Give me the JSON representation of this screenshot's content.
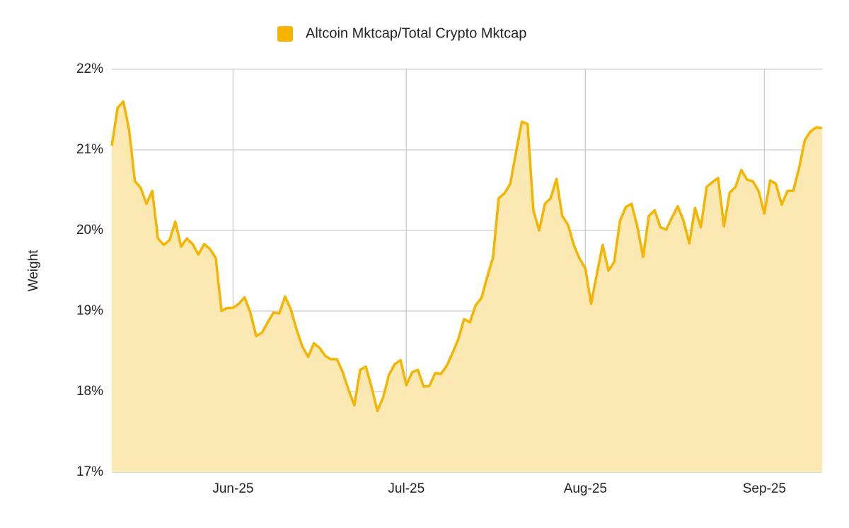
{
  "chart_data": {
    "type": "area",
    "y_label": "Weight",
    "categories": [
      null,
      null,
      null,
      null,
      null,
      null,
      null,
      null,
      null,
      null,
      null,
      null,
      null,
      null,
      null,
      null,
      null,
      null,
      null,
      null,
      null,
      "Jun-25",
      null,
      null,
      null,
      null,
      null,
      null,
      null,
      null,
      null,
      null,
      null,
      null,
      null,
      null,
      null,
      null,
      null,
      null,
      null,
      null,
      null,
      null,
      null,
      null,
      null,
      null,
      null,
      null,
      null,
      "Jul-25",
      null,
      null,
      null,
      null,
      null,
      null,
      null,
      null,
      null,
      null,
      null,
      null,
      null,
      null,
      null,
      null,
      null,
      null,
      null,
      null,
      null,
      null,
      null,
      null,
      null,
      null,
      null,
      null,
      null,
      null,
      "Aug-25",
      null,
      null,
      null,
      null,
      null,
      null,
      null,
      null,
      null,
      null,
      null,
      null,
      null,
      null,
      null,
      null,
      null,
      null,
      null,
      null,
      null,
      null,
      null,
      null,
      null,
      null,
      null,
      null,
      null,
      null,
      "Sep-25",
      null,
      null,
      null,
      null,
      null,
      null,
      null,
      null,
      null,
      null
    ],
    "series": [
      {
        "name": "Altcoin Mktcap/Total Crypto Mktcap",
        "color": "#f4b400",
        "fill": "#fce8b2",
        "values": [
          21.05,
          21.52,
          21.6,
          21.25,
          20.61,
          20.53,
          20.33,
          20.49,
          19.9,
          19.82,
          19.88,
          20.11,
          19.8,
          19.9,
          19.83,
          19.7,
          19.83,
          19.77,
          19.66,
          19.0,
          19.04,
          19.04,
          19.09,
          19.17,
          18.98,
          18.69,
          18.73,
          18.86,
          18.98,
          18.97,
          19.18,
          19.02,
          18.77,
          18.56,
          18.43,
          18.6,
          18.54,
          18.44,
          18.4,
          18.4,
          18.24,
          18.02,
          17.83,
          18.27,
          18.31,
          18.05,
          17.76,
          17.93,
          18.21,
          18.34,
          18.39,
          18.08,
          18.24,
          18.27,
          18.06,
          18.07,
          18.23,
          18.22,
          18.32,
          18.48,
          18.65,
          18.9,
          18.86,
          19.07,
          19.16,
          19.42,
          19.66,
          20.4,
          20.46,
          20.58,
          20.97,
          21.35,
          21.32,
          20.25,
          20.0,
          20.33,
          20.4,
          20.64,
          20.18,
          20.07,
          19.82,
          19.65,
          19.53,
          19.09,
          19.46,
          19.82,
          19.5,
          19.61,
          20.12,
          20.29,
          20.33,
          20.05,
          19.67,
          20.18,
          20.25,
          20.04,
          20.01,
          20.16,
          20.3,
          20.12,
          19.84,
          20.28,
          20.04,
          20.54,
          20.6,
          20.65,
          20.05,
          20.47,
          20.54,
          20.75,
          20.63,
          20.61,
          20.49,
          20.21,
          20.62,
          20.58,
          20.32,
          20.49,
          20.49,
          20.77,
          21.12,
          21.23,
          21.28,
          21.27
        ]
      }
    ],
    "ylim": [
      17,
      22
    ],
    "yticks": [
      {
        "value": 17,
        "label": "17%"
      },
      {
        "value": 18,
        "label": "18%"
      },
      {
        "value": 19,
        "label": "19%"
      },
      {
        "value": 20,
        "label": "20%"
      },
      {
        "value": 21,
        "label": "21%"
      },
      {
        "value": 22,
        "label": "22%"
      }
    ],
    "grid": true,
    "legend": "top"
  }
}
